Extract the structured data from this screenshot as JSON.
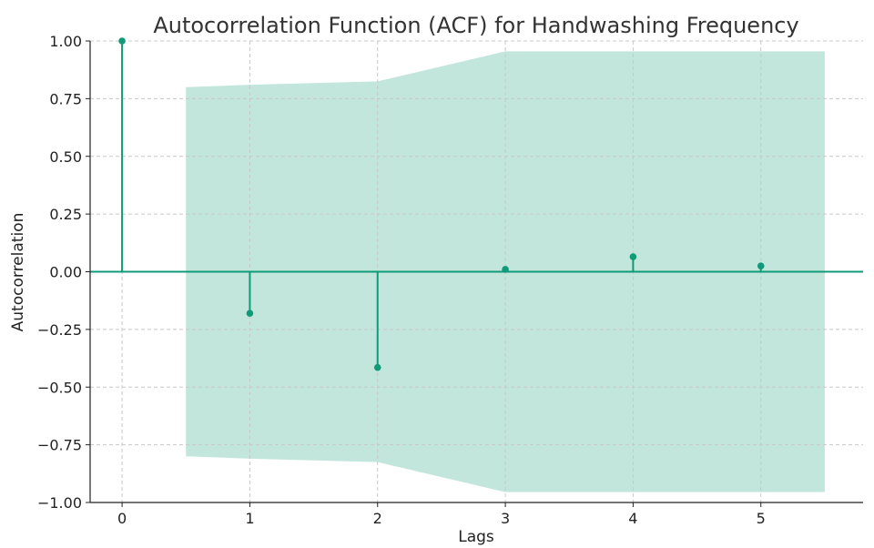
{
  "chart_data": {
    "type": "stem",
    "title": "Autocorrelation Function (ACF) for Handwashing Frequency",
    "xlabel": "Lags",
    "ylabel": "Autocorrelation",
    "xlim": [
      -0.25,
      5.8
    ],
    "ylim": [
      -1.0,
      1.0
    ],
    "x_ticks": [
      0,
      1,
      2,
      3,
      4,
      5
    ],
    "x_tick_labels": [
      "0",
      "1",
      "2",
      "3",
      "4",
      "5"
    ],
    "y_ticks": [
      1.0,
      0.75,
      0.5,
      0.25,
      0.0,
      -0.25,
      -0.5,
      -0.75,
      -1.0
    ],
    "y_tick_labels": [
      "1.00",
      "0.75",
      "0.50",
      "0.25",
      "0.00",
      "−0.25",
      "−0.50",
      "−0.75",
      "−1.00"
    ],
    "grid": true,
    "series": [
      {
        "lags": [
          0,
          1,
          2,
          3,
          4,
          5
        ],
        "values": [
          1.0,
          -0.18,
          -0.415,
          0.01,
          0.065,
          0.025
        ]
      }
    ],
    "confidence_band": {
      "x": [
        0.5,
        1.0,
        2.0,
        3.0,
        4.0,
        5.0,
        5.5
      ],
      "upper": [
        0.8,
        0.81,
        0.825,
        0.955,
        0.955,
        0.955,
        0.955
      ],
      "lower": [
        -0.8,
        -0.81,
        -0.825,
        -0.955,
        -0.955,
        -0.955,
        -0.955
      ]
    },
    "colors": {
      "stem": "#0f9a78",
      "band": "#c3e6dc",
      "zero_line": "#0f9a78",
      "axis": "#222222"
    }
  }
}
